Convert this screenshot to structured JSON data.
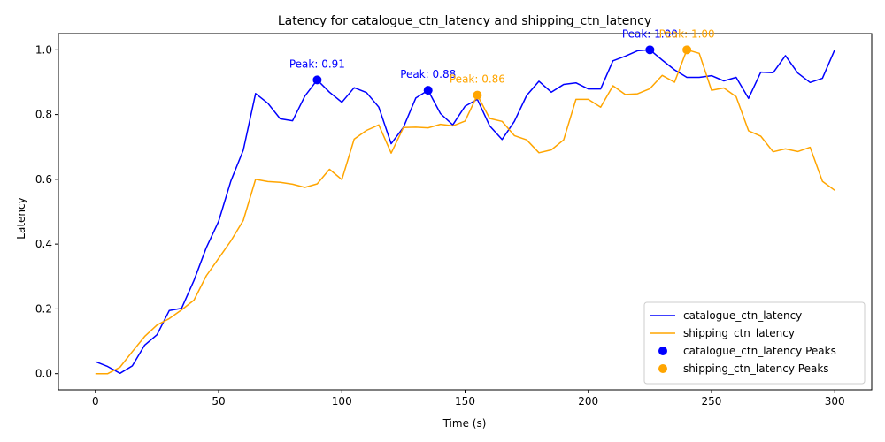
{
  "chart_data": {
    "type": "line",
    "title": "Latency for catalogue_ctn_latency and shipping_ctn_latency",
    "xlabel": "Time (s)",
    "ylabel": "Latency",
    "xlim": [
      -15,
      315
    ],
    "ylim": [
      -0.05,
      1.05
    ],
    "xticks": [
      0,
      50,
      100,
      150,
      200,
      250,
      300
    ],
    "yticks": [
      0.0,
      0.2,
      0.4,
      0.6,
      0.8,
      1.0
    ],
    "xtick_labels": [
      "0",
      "50",
      "100",
      "150",
      "200",
      "250",
      "300"
    ],
    "ytick_labels": [
      "0.0",
      "0.2",
      "0.4",
      "0.6",
      "0.8",
      "1.0"
    ],
    "grid": false,
    "legend_position": "lower-right",
    "x": [
      0,
      5,
      10,
      15,
      20,
      25,
      30,
      35,
      40,
      45,
      50,
      55,
      60,
      65,
      70,
      75,
      80,
      85,
      90,
      95,
      100,
      105,
      110,
      115,
      120,
      125,
      130,
      135,
      140,
      145,
      150,
      155,
      160,
      165,
      170,
      175,
      180,
      185,
      190,
      195,
      200,
      205,
      210,
      215,
      220,
      225,
      230,
      235,
      240,
      245,
      250,
      255,
      260,
      265,
      270,
      275,
      280,
      285,
      290,
      295,
      300
    ],
    "series": [
      {
        "name": "catalogue_ctn_latency",
        "color": "#0000ff",
        "values": [
          0.037,
          0.022,
          0.001,
          0.024,
          0.088,
          0.12,
          0.195,
          0.202,
          0.288,
          0.389,
          0.47,
          0.595,
          0.69,
          0.865,
          0.835,
          0.787,
          0.781,
          0.857,
          0.907,
          0.869,
          0.838,
          0.883,
          0.868,
          0.823,
          0.71,
          0.761,
          0.851,
          0.875,
          0.803,
          0.768,
          0.826,
          0.847,
          0.765,
          0.723,
          0.779,
          0.859,
          0.903,
          0.869,
          0.893,
          0.898,
          0.879,
          0.879,
          0.966,
          0.98,
          0.997,
          1.0,
          0.968,
          0.938,
          0.915,
          0.915,
          0.92,
          0.904,
          0.915,
          0.85,
          0.931,
          0.929,
          0.982,
          0.928,
          0.899,
          0.912,
          1.0
        ]
      },
      {
        "name": "shipping_ctn_latency",
        "color": "#ffa500",
        "values": [
          0.0,
          0.0,
          0.02,
          0.068,
          0.115,
          0.15,
          0.17,
          0.197,
          0.227,
          0.302,
          0.356,
          0.41,
          0.473,
          0.6,
          0.593,
          0.591,
          0.585,
          0.575,
          0.586,
          0.631,
          0.599,
          0.724,
          0.751,
          0.768,
          0.681,
          0.76,
          0.761,
          0.759,
          0.77,
          0.765,
          0.78,
          0.86,
          0.788,
          0.779,
          0.735,
          0.722,
          0.682,
          0.691,
          0.722,
          0.847,
          0.847,
          0.823,
          0.889,
          0.862,
          0.864,
          0.88,
          0.921,
          0.9,
          1.0,
          0.989,
          0.875,
          0.882,
          0.855,
          0.75,
          0.733,
          0.685,
          0.694,
          0.686,
          0.699,
          0.594,
          0.566
        ]
      }
    ],
    "peaks": [
      {
        "series": "catalogue_ctn_latency",
        "color": "#0000ff",
        "points": [
          {
            "x": 90,
            "y": 0.907,
            "label": "Peak: 0.91"
          },
          {
            "x": 135,
            "y": 0.875,
            "label": "Peak: 0.88"
          },
          {
            "x": 225,
            "y": 1.0,
            "label": "Peak: 1.00"
          }
        ]
      },
      {
        "series": "shipping_ctn_latency",
        "color": "#ffa500",
        "points": [
          {
            "x": 155,
            "y": 0.86,
            "label": "Peak: 0.86"
          },
          {
            "x": 240,
            "y": 1.0,
            "label": "Peak: 1.00"
          }
        ]
      }
    ],
    "legend": [
      {
        "label": "catalogue_ctn_latency",
        "kind": "line",
        "color": "#0000ff"
      },
      {
        "label": "shipping_ctn_latency",
        "kind": "line",
        "color": "#ffa500"
      },
      {
        "label": "catalogue_ctn_latency Peaks",
        "kind": "marker",
        "color": "#0000ff"
      },
      {
        "label": "shipping_ctn_latency Peaks",
        "kind": "marker",
        "color": "#ffa500"
      }
    ]
  }
}
